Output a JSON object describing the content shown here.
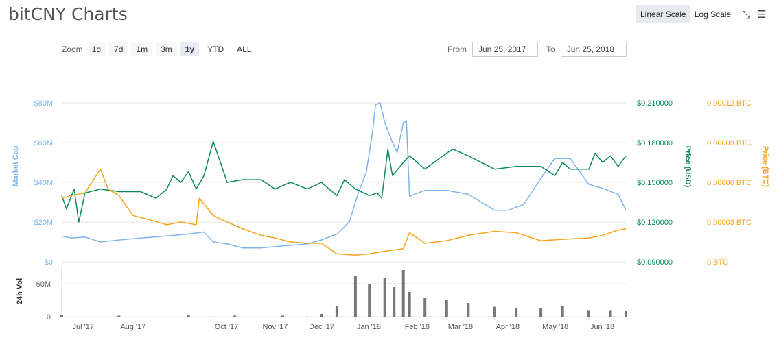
{
  "header": {
    "title": "bitCNY Charts",
    "linear_scale": "Linear Scale",
    "log_scale": "Log Scale",
    "fullscreen_icon": "expand-icon",
    "menu_icon": "hamburger-menu-icon"
  },
  "zoom": {
    "label": "Zoom",
    "buttons": [
      "1d",
      "7d",
      "1m",
      "3m",
      "1y",
      "YTD",
      "ALL"
    ],
    "active": "1y"
  },
  "range": {
    "from_label": "From",
    "from_value": "Jun 25, 2017",
    "to_label": "To",
    "to_value": "Jun 25, 2018"
  },
  "colors": {
    "market_cap": "#7cb5ec",
    "price_usd": "#0b8a5a",
    "price_btc": "#f7a21b",
    "volume": "#777777",
    "grid": "#e6e6e6"
  },
  "chart_data": {
    "type": "line",
    "x_labels": [
      "Jul '17",
      "Aug '17",
      "Oct '17",
      "Nov '17",
      "Dec '17",
      "Jan '18",
      "Feb '18",
      "Mar '18",
      "Apr '18",
      "May '18",
      "Jun '18"
    ],
    "x_label_dates": [
      "2017-07-01",
      "2017-08-01",
      "2017-10-01",
      "2017-11-01",
      "2017-12-01",
      "2018-01-01",
      "2018-02-01",
      "2018-03-01",
      "2018-04-01",
      "2018-05-01",
      "2018-06-01"
    ],
    "x_range": [
      "2017-06-25",
      "2018-06-25"
    ],
    "y_axis_left": {
      "title": "Market Cap",
      "ticks": [
        "$0",
        "$20M",
        "$40M",
        "$60M",
        "$80M"
      ],
      "range": [
        0,
        80000000
      ]
    },
    "y_axis_right_usd": {
      "title": "Price (USD)",
      "ticks": [
        "$0.090000",
        "$0.120000",
        "$0.150000",
        "$0.180000",
        "$0.210000"
      ],
      "range": [
        0.09,
        0.21
      ]
    },
    "y_axis_right_btc": {
      "title": "Price (BTC)",
      "ticks": [
        "0 BTC",
        "0.00003 BTC",
        "0.00006 BTC",
        "0.00009 BTC",
        "0.00012 BTC"
      ],
      "range": [
        0,
        0.00012
      ]
    },
    "volume_axis": {
      "title": "24h Vol",
      "ticks": [
        "0",
        "60M"
      ],
      "range": [
        0,
        90000000
      ]
    },
    "grid": true,
    "series": [
      {
        "name": "Market Cap",
        "axis": "left",
        "x": [
          "2017-06-25",
          "2017-07-01",
          "2017-07-10",
          "2017-07-20",
          "2017-08-01",
          "2017-08-15",
          "2017-09-01",
          "2017-09-15",
          "2017-09-25",
          "2017-10-01",
          "2017-10-10",
          "2017-10-20",
          "2017-11-01",
          "2017-11-15",
          "2017-12-01",
          "2017-12-10",
          "2017-12-20",
          "2017-12-28",
          "2018-01-03",
          "2018-01-08",
          "2018-01-12",
          "2018-01-14",
          "2018-01-17",
          "2018-01-20",
          "2018-01-25",
          "2018-01-28",
          "2018-02-01",
          "2018-02-03",
          "2018-02-05",
          "2018-02-15",
          "2018-03-01",
          "2018-03-15",
          "2018-04-01",
          "2018-04-10",
          "2018-04-20",
          "2018-05-01",
          "2018-05-10",
          "2018-05-20",
          "2018-06-01",
          "2018-06-10",
          "2018-06-20",
          "2018-06-25"
        ],
        "y": [
          13000000,
          12000000,
          12500000,
          10000000,
          11000000,
          12000000,
          13000000,
          14000000,
          15000000,
          10000000,
          9000000,
          7000000,
          7000000,
          8000000,
          9000000,
          11000000,
          14000000,
          20000000,
          35000000,
          45000000,
          65000000,
          79000000,
          80000000,
          70000000,
          60000000,
          55000000,
          70000000,
          71000000,
          33000000,
          36000000,
          36000000,
          34000000,
          26000000,
          26000000,
          29000000,
          42000000,
          52000000,
          52000000,
          39000000,
          37000000,
          34000000,
          26000000
        ]
      },
      {
        "name": "Price (USD)",
        "axis": "right_usd",
        "x": [
          "2017-06-25",
          "2017-06-28",
          "2017-07-03",
          "2017-07-06",
          "2017-07-10",
          "2017-07-20",
          "2017-08-01",
          "2017-08-15",
          "2017-08-25",
          "2017-09-01",
          "2017-09-05",
          "2017-09-10",
          "2017-09-15",
          "2017-09-20",
          "2017-09-25",
          "2017-10-01",
          "2017-10-10",
          "2017-10-20",
          "2017-11-01",
          "2017-11-10",
          "2017-11-20",
          "2017-12-01",
          "2017-12-10",
          "2017-12-20",
          "2017-12-25",
          "2018-01-01",
          "2018-01-10",
          "2018-01-15",
          "2018-01-18",
          "2018-01-22",
          "2018-01-25",
          "2018-02-01",
          "2018-02-05",
          "2018-02-15",
          "2018-03-01",
          "2018-03-05",
          "2018-03-15",
          "2018-04-01",
          "2018-04-15",
          "2018-05-01",
          "2018-05-10",
          "2018-05-15",
          "2018-05-20",
          "2018-06-01",
          "2018-06-05",
          "2018-06-10",
          "2018-06-15",
          "2018-06-20",
          "2018-06-25"
        ],
        "y": [
          0.14,
          0.13,
          0.145,
          0.12,
          0.142,
          0.145,
          0.143,
          0.143,
          0.138,
          0.145,
          0.155,
          0.15,
          0.158,
          0.145,
          0.155,
          0.181,
          0.15,
          0.152,
          0.152,
          0.145,
          0.15,
          0.145,
          0.15,
          0.14,
          0.152,
          0.145,
          0.14,
          0.142,
          0.138,
          0.175,
          0.155,
          0.165,
          0.17,
          0.16,
          0.172,
          0.175,
          0.17,
          0.16,
          0.162,
          0.162,
          0.155,
          0.165,
          0.16,
          0.16,
          0.172,
          0.165,
          0.17,
          0.162,
          0.17
        ]
      },
      {
        "name": "Price (BTC)",
        "axis": "right_btc",
        "x": [
          "2017-06-25",
          "2017-07-01",
          "2017-07-10",
          "2017-07-20",
          "2017-07-25",
          "2017-08-01",
          "2017-08-10",
          "2017-08-20",
          "2017-09-01",
          "2017-09-10",
          "2017-09-20",
          "2017-09-22",
          "2017-10-01",
          "2017-10-10",
          "2017-10-20",
          "2017-11-01",
          "2017-11-10",
          "2017-11-20",
          "2017-12-01",
          "2017-12-10",
          "2017-12-20",
          "2018-01-01",
          "2018-01-10",
          "2018-01-20",
          "2018-02-01",
          "2018-02-05",
          "2018-02-15",
          "2018-03-01",
          "2018-03-15",
          "2018-04-01",
          "2018-04-15",
          "2018-05-01",
          "2018-05-15",
          "2018-06-01",
          "2018-06-10",
          "2018-06-20",
          "2018-06-25"
        ],
        "y": [
          4.8e-05,
          5e-05,
          5.2e-05,
          7e-05,
          5.5e-05,
          5e-05,
          3.5e-05,
          3.2e-05,
          2.8e-05,
          3e-05,
          2.8e-05,
          4.8e-05,
          3.5e-05,
          3e-05,
          2.5e-05,
          2e-05,
          1.8e-05,
          1.5e-05,
          1.4e-05,
          1.4e-05,
          6e-06,
          5e-06,
          6e-06,
          8e-06,
          1e-05,
          2.2e-05,
          1.4e-05,
          1.6e-05,
          2e-05,
          2.3e-05,
          2.2e-05,
          1.6e-05,
          1.7e-05,
          1.8e-05,
          2e-05,
          2.4e-05,
          2.5e-05
        ]
      }
    ],
    "volume": {
      "name": "24h Vol",
      "x": [
        "2017-06-25",
        "2017-08-01",
        "2017-09-15",
        "2017-10-15",
        "2017-11-15",
        "2017-12-10",
        "2017-12-20",
        "2018-01-01",
        "2018-01-10",
        "2018-01-20",
        "2018-01-26",
        "2018-02-01",
        "2018-02-05",
        "2018-02-15",
        "2018-03-01",
        "2018-03-15",
        "2018-04-01",
        "2018-04-15",
        "2018-05-01",
        "2018-05-15",
        "2018-06-01",
        "2018-06-15",
        "2018-06-25"
      ],
      "y": [
        3000000,
        2000000,
        3000000,
        2000000,
        2000000,
        5000000,
        20000000,
        75000000,
        60000000,
        70000000,
        55000000,
        85000000,
        45000000,
        35000000,
        30000000,
        25000000,
        18000000,
        15000000,
        15000000,
        20000000,
        12000000,
        12000000,
        10000000
      ]
    }
  }
}
